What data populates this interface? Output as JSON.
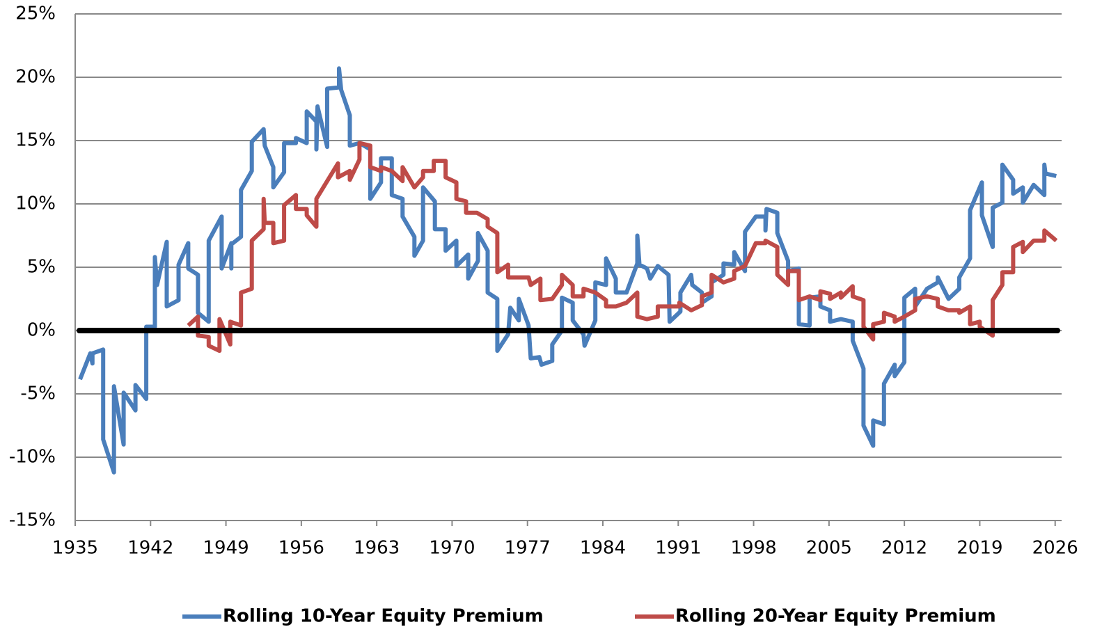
{
  "chart_data": {
    "type": "line",
    "xlim": [
      1935,
      2026.6
    ],
    "xticks": [
      1935,
      1942,
      1949,
      1956,
      1963,
      1970,
      1977,
      1984,
      1991,
      1998,
      2005,
      2012,
      2019,
      2026
    ],
    "ylim": [
      -15,
      25
    ],
    "yticks": [
      {
        "value": 25,
        "label": "25%"
      },
      {
        "value": 20,
        "label": "20%"
      },
      {
        "value": 15,
        "label": "15%"
      },
      {
        "value": 10,
        "label": "10%"
      },
      {
        "value": 5,
        "label": "5%"
      },
      {
        "value": 0,
        "label": "0%"
      },
      {
        "value": -5,
        "label": "-5%"
      },
      {
        "value": -10,
        "label": "-10%"
      },
      {
        "value": -15,
        "label": "-15%"
      }
    ],
    "grid": true,
    "zero_line": true,
    "legend": "bottom",
    "series": [
      {
        "name": "Rolling 10-Year Equity Premium",
        "color": "#4a7ebb",
        "x": [
          1935.45,
          1936.4,
          1936.6,
          1936.6,
          1937.6,
          1937.6,
          1938.6,
          1938.6,
          1939.5,
          1939.5,
          1940.6,
          1940.6,
          1941.6,
          1941.6,
          1942.4,
          1942.4,
          1942.6,
          1943.5,
          1943.5,
          1944.6,
          1944.6,
          1945.5,
          1945.5,
          1946.4,
          1946.4,
          1947.4,
          1947.4,
          1948.6,
          1948.6,
          1949.5,
          1949.5,
          1949.5,
          1950.4,
          1950.4,
          1951.4,
          1951.4,
          1952.5,
          1952.6,
          1953.4,
          1953.4,
          1954.4,
          1954.4,
          1955.5,
          1955.5,
          1956.5,
          1956.5,
          1957.4,
          1957.4,
          1957.5,
          1958.4,
          1958.4,
          1959.5,
          1959.5,
          1959.7,
          1960.5,
          1960.5,
          1961.4,
          1962.4,
          1962.4,
          1963.4,
          1963.4,
          1964.4,
          1964.4,
          1965.4,
          1965.4,
          1966.5,
          1966.5,
          1967.3,
          1967.3,
          1968.4,
          1968.4,
          1969.4,
          1969.4,
          1970.4,
          1970.4,
          1971.5,
          1971.5,
          1972.4,
          1972.4,
          1973.3,
          1973.3,
          1974.2,
          1974.2,
          1975.2,
          1975.4,
          1976.2,
          1976.2,
          1977.1,
          1977.3,
          1978.1,
          1978.3,
          1979.3,
          1979.3,
          1980.2,
          1980.2,
          1981.2,
          1981.2,
          1982.2,
          1982.3,
          1983.3,
          1983.3,
          1984.3,
          1984.3,
          1985.2,
          1985.2,
          1986.2,
          1987.2,
          1987.2,
          1987.4,
          1988.1,
          1988.4,
          1989.1,
          1990.1,
          1990.2,
          1991.2,
          1991.2,
          1992.2,
          1992.3,
          1993.2,
          1993.2,
          1994.1,
          1994.1,
          1995.2,
          1995.2,
          1996.2,
          1996.2,
          1997.2,
          1997.2,
          1998.2,
          1999.1,
          1999.1,
          1999.2,
          2000.2,
          2000.2,
          2001.2,
          2001.2,
          2002.2,
          2002.2,
          2003.2,
          2003.2,
          2004.2,
          2004.2,
          2005.1,
          2005.1,
          2006.1,
          2007.2,
          2007.2,
          2008.2,
          2008.2,
          2009.1,
          2009.1,
          2010.1,
          2010.1,
          2011.1,
          2011.1,
          2012.0,
          2012.0,
          2013.0,
          2013.0,
          2014.1,
          2015.1,
          2015.1,
          2016.1,
          2017.1,
          2017.1,
          2018.1,
          2018.1,
          2019.2,
          2019.2,
          2020.2,
          2020.2,
          2021.1,
          2021.1,
          2022.1,
          2022.1,
          2023.0,
          2023.0,
          2024.0,
          2025.0,
          2025.0,
          2025.1,
          2026.1
        ],
        "values": [
          -3.85,
          -1.8,
          -2.6,
          -1.8,
          -1.5,
          -8.6,
          -11.2,
          -4.4,
          -9.0,
          -4.9,
          -6.3,
          -4.3,
          -5.4,
          0.3,
          0.3,
          5.8,
          3.6,
          7.0,
          1.9,
          2.4,
          5.2,
          6.9,
          4.9,
          4.4,
          1.4,
          0.7,
          7.1,
          9.0,
          4.9,
          6.9,
          4.9,
          6.8,
          7.4,
          11.1,
          12.6,
          14.9,
          15.9,
          14.6,
          12.9,
          11.3,
          12.5,
          14.8,
          14.8,
          15.2,
          14.8,
          17.3,
          16.5,
          14.3,
          17.7,
          14.5,
          19.1,
          19.2,
          20.7,
          19.0,
          17.0,
          14.6,
          14.8,
          14.3,
          10.4,
          11.7,
          13.6,
          13.6,
          10.7,
          10.4,
          9.0,
          7.4,
          5.9,
          7.1,
          11.3,
          10.2,
          8.0,
          8.0,
          6.3,
          7.1,
          5.1,
          6.0,
          4.1,
          5.5,
          7.7,
          6.3,
          3.0,
          2.5,
          -1.6,
          -0.3,
          1.8,
          0.8,
          2.5,
          0.4,
          -2.2,
          -2.1,
          -2.7,
          -2.4,
          -1.1,
          0,
          2.6,
          2.2,
          0.8,
          -0.3,
          -1.2,
          0.8,
          3.8,
          3.6,
          5.7,
          4.1,
          3.0,
          3.0,
          5.3,
          7.5,
          5.2,
          4.9,
          4.1,
          5.1,
          4.4,
          0.7,
          1.5,
          3.0,
          4.4,
          3.6,
          3.0,
          2.2,
          2.7,
          3.8,
          4.4,
          5.3,
          5.2,
          6.2,
          4.7,
          7.8,
          9.0,
          9.0,
          7.9,
          9.6,
          9.3,
          7.7,
          5.5,
          4.7,
          4.9,
          0.5,
          0.4,
          2.6,
          2.7,
          1.9,
          1.6,
          0.7,
          0.9,
          0.7,
          -0.8,
          -3.0,
          -7.5,
          -9.1,
          -7.1,
          -7.4,
          -4.2,
          -2.7,
          -3.6,
          -2.5,
          2.6,
          3.3,
          1.9,
          3.3,
          3.8,
          4.2,
          2.5,
          3.3,
          4.2,
          5.7,
          9.5,
          11.7,
          9.1,
          6.6,
          9.7,
          10.1,
          13.1,
          11.9,
          10.8,
          11.3,
          10.1,
          11.5,
          10.7,
          13.1,
          12.4,
          12.2
        ]
      },
      {
        "name": "Rolling 20-Year Equity Premium",
        "color": "#be4b48",
        "x": [
          1945.5,
          1946.4,
          1946.4,
          1947.4,
          1947.4,
          1948.4,
          1948.4,
          1949.4,
          1949.4,
          1950.4,
          1950.4,
          1951.4,
          1951.4,
          1952.5,
          1952.5,
          1952.6,
          1953.4,
          1953.4,
          1954.4,
          1954.4,
          1955.5,
          1955.5,
          1956.5,
          1956.5,
          1957.4,
          1957.4,
          1958.4,
          1959.4,
          1959.4,
          1960.5,
          1960.5,
          1961.4,
          1961.4,
          1962.4,
          1962.4,
          1963.4,
          1963.4,
          1964.4,
          1965.4,
          1965.4,
          1966.5,
          1967.3,
          1967.3,
          1968.3,
          1968.3,
          1969.4,
          1969.4,
          1970.4,
          1970.4,
          1971.3,
          1971.3,
          1972.3,
          1973.3,
          1973.3,
          1974.2,
          1974.2,
          1975.2,
          1975.2,
          1976.2,
          1977.1,
          1977.3,
          1978.2,
          1978.2,
          1979.3,
          1980.2,
          1980.2,
          1981.2,
          1981.2,
          1982.2,
          1982.2,
          1983.3,
          1984.3,
          1984.3,
          1985.2,
          1986.2,
          1987.2,
          1987.2,
          1988.1,
          1989.1,
          1989.1,
          1990.1,
          1991.1,
          1991.1,
          1992.2,
          1993.2,
          1993.2,
          1994.1,
          1994.1,
          1995.2,
          1996.2,
          1996.2,
          1997.2,
          1998.2,
          1999.1,
          1999.1,
          2000.2,
          2000.2,
          2001.2,
          2001.2,
          2002.2,
          2002.2,
          2003.2,
          2004.2,
          2004.2,
          2005.1,
          2005.1,
          2006.1,
          2006.1,
          2007.2,
          2007.2,
          2008.2,
          2008.2,
          2009.1,
          2009.1,
          2010.1,
          2010.1,
          2011.1,
          2011.1,
          2012.0,
          2013.0,
          2013.0,
          2014.1,
          2015.1,
          2015.1,
          2016.1,
          2017.1,
          2017.1,
          2018.1,
          2018.1,
          2019.0,
          2019.0,
          2020.2,
          2020.2,
          2021.1,
          2021.1,
          2022.1,
          2022.1,
          2023.0,
          2023.0,
          2024.0,
          2025.0,
          2025.0,
          2026.1
        ],
        "values": [
          0.4,
          1.1,
          -0.4,
          -0.5,
          -1.2,
          -1.6,
          0.9,
          -1.1,
          0.7,
          0.4,
          3.0,
          3.3,
          7.1,
          8.0,
          10.4,
          8.5,
          8.5,
          6.9,
          7.1,
          9.9,
          10.7,
          9.6,
          9.6,
          9.1,
          8.2,
          10.4,
          11.8,
          13.2,
          12.1,
          12.6,
          11.9,
          13.5,
          14.8,
          14.6,
          12.9,
          12.6,
          12.9,
          12.6,
          11.8,
          12.9,
          11.3,
          12.1,
          12.6,
          12.6,
          13.4,
          13.4,
          12.1,
          11.7,
          10.4,
          10.2,
          9.3,
          9.3,
          8.8,
          8.2,
          7.7,
          4.6,
          5.2,
          4.2,
          4.2,
          4.2,
          3.6,
          4.1,
          2.4,
          2.5,
          3.6,
          4.4,
          3.6,
          2.7,
          2.7,
          3.3,
          3.0,
          2.4,
          1.9,
          1.9,
          2.2,
          3.0,
          1.1,
          0.9,
          1.1,
          1.9,
          1.9,
          1.9,
          2.2,
          1.6,
          2.0,
          2.7,
          3.0,
          4.4,
          3.8,
          4.1,
          4.7,
          5.1,
          6.9,
          6.9,
          7.1,
          6.6,
          4.4,
          3.6,
          4.7,
          4.7,
          2.4,
          2.7,
          2.4,
          3.1,
          2.9,
          2.5,
          3.0,
          2.6,
          3.5,
          2.7,
          2.4,
          0.3,
          -0.7,
          0.5,
          0.7,
          1.4,
          1.1,
          0.7,
          1.1,
          1.6,
          2.5,
          2.7,
          2.5,
          1.9,
          1.6,
          1.6,
          1.4,
          1.9,
          0.5,
          0.7,
          0.3,
          -0.4,
          2.4,
          3.6,
          4.6,
          4.6,
          6.6,
          7.0,
          6.2,
          7.1,
          7.1,
          7.9,
          7.1
        ]
      }
    ]
  }
}
